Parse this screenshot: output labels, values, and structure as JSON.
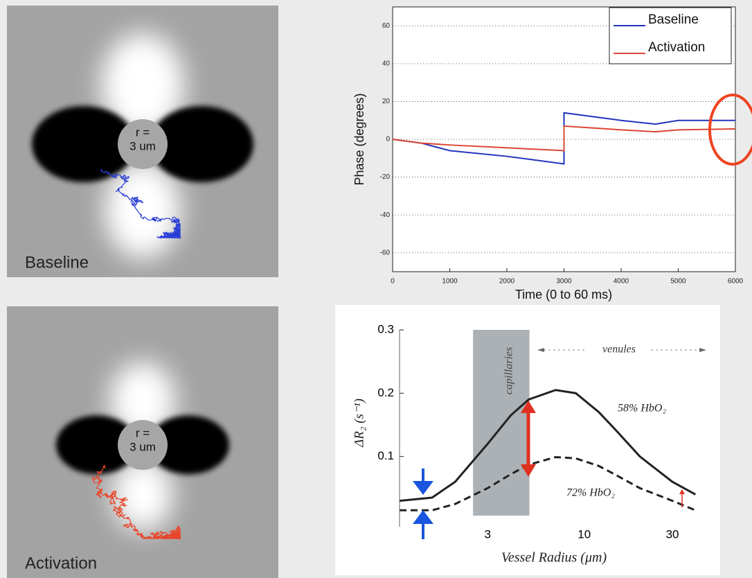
{
  "panels": [
    {
      "label": "Baseline",
      "radius_label": [
        "r =",
        "3 um"
      ]
    },
    {
      "label": "Activation",
      "radius_label": [
        "r =",
        "3 um"
      ]
    }
  ],
  "chart_data": [
    {
      "type": "line",
      "y_label": "Phase (degrees)",
      "x_label": "Time (0 to 60 ms)",
      "x": [
        0,
        500,
        1000,
        2000,
        3000,
        3000,
        3500,
        4000,
        4600,
        5000,
        6000
      ],
      "series": [
        {
          "name": "Baseline",
          "color": "#2233bb",
          "values": [
            0,
            -2,
            -6,
            -9,
            -13,
            14,
            12,
            10,
            8,
            10,
            10
          ]
        },
        {
          "name": "Activation",
          "color": "#dd4433",
          "values": [
            0,
            -2,
            -3,
            -4.5,
            -6,
            7,
            6,
            5,
            4,
            5,
            5.5
          ]
        }
      ],
      "xlim": [
        0,
        6000
      ],
      "xticks": [
        0,
        1000,
        2000,
        3000,
        4000,
        5000,
        6000
      ],
      "ylim": [
        -70,
        70
      ],
      "yticks": [
        -60,
        -40,
        -20,
        0,
        20,
        40,
        60
      ],
      "grid": true,
      "legend": "upper right"
    },
    {
      "type": "line",
      "y_label": "ΔR₂ (s⁻¹)",
      "x_label": "Vessel Radius (μm)",
      "xlog": true,
      "x": [
        1,
        1.5,
        2,
        3,
        4,
        5,
        7,
        9,
        12,
        15,
        20,
        30,
        40
      ],
      "series": [
        {
          "name": "58% HbO₂",
          "color": "#222222",
          "dash": "solid",
          "values": [
            0.03,
            0.035,
            0.06,
            0.12,
            0.165,
            0.19,
            0.205,
            0.2,
            0.17,
            0.14,
            0.1,
            0.06,
            0.04
          ]
        },
        {
          "name": "72% HbO₂",
          "color": "#222222",
          "dash": "dashed",
          "values": [
            0.015,
            0.015,
            0.025,
            0.05,
            0.072,
            0.087,
            0.099,
            0.097,
            0.085,
            0.07,
            0.05,
            0.03,
            0.015
          ]
        }
      ],
      "xlim": [
        1,
        45
      ],
      "xticks": [
        3,
        10,
        30
      ],
      "ylim": [
        0,
        0.3
      ],
      "yticks": [
        0.1,
        0.2,
        0.3
      ],
      "annotations": [
        "capillaries",
        "venules"
      ]
    }
  ]
}
